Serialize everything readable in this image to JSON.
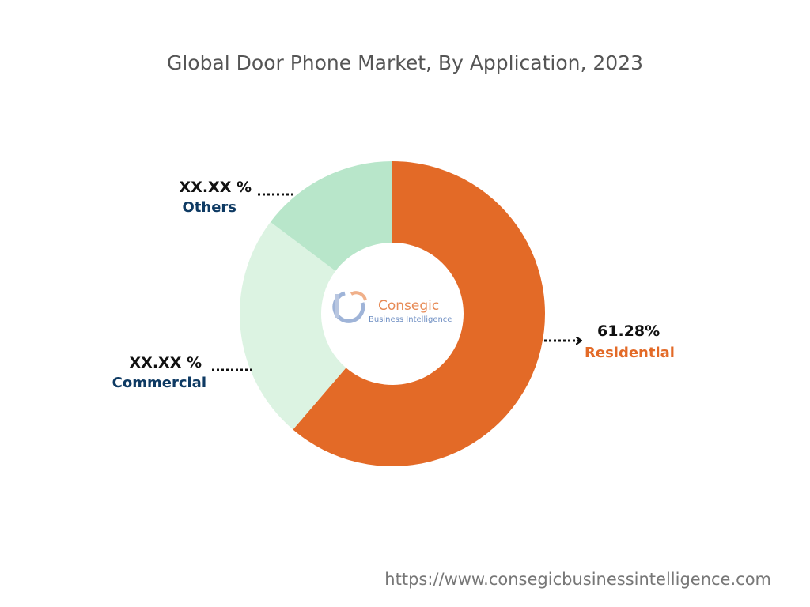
{
  "chart_data": {
    "type": "pie",
    "variant": "donut",
    "title": "Global Door Phone Market, By Application, 2023",
    "categories": [
      "Residential",
      "Commercial",
      "Others"
    ],
    "values": [
      61.28,
      24.0,
      14.72
    ],
    "value_labels": [
      "61.28%",
      "XX.XX %",
      "XX.XX %"
    ],
    "colors": [
      "#e36a27",
      "#dcf3e2",
      "#b8e6ca"
    ],
    "label_colors": [
      "#e36a27",
      "#0e3a63",
      "#0e3a63"
    ]
  },
  "watermark": {
    "name": "Consegic",
    "tagline": "Business Intelligence",
    "name_color": "#e78a55",
    "tagline_color": "#6f8fc3"
  },
  "source": {
    "url": "https://www.consegicbusinessintelligence.com"
  }
}
